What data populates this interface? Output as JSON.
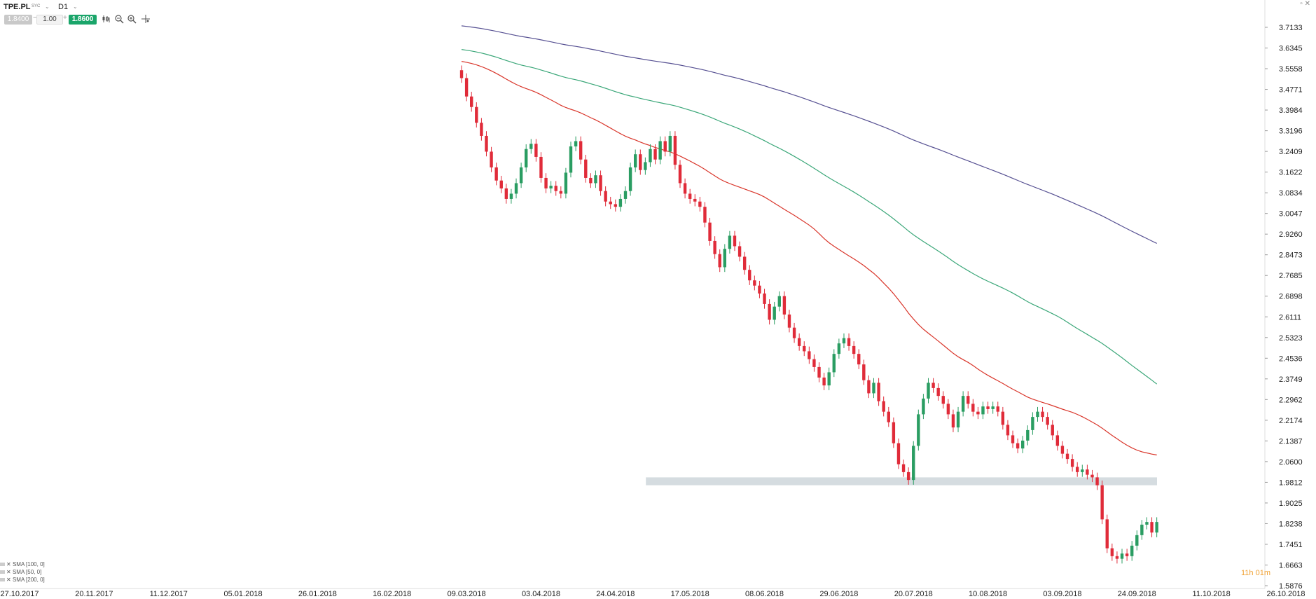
{
  "toolbar": {
    "symbol": "TPE.PL",
    "symbol_sub": "SYC",
    "timeframe": "D1",
    "sell_price": "1.8400",
    "lot_size": "1.00",
    "buy_price": "1.8600",
    "lot_minus": "−",
    "lot_plus": "+"
  },
  "window_controls": "▫ ✕",
  "countdown": {
    "hours": "11",
    "h": "h",
    "minutes": "01",
    "m": "m"
  },
  "legend": [
    {
      "label": "SMA [100, 0]",
      "color": "#3ba779"
    },
    {
      "label": "SMA [50, 0]",
      "color": "#d9362b"
    },
    {
      "label": "SMA [200, 0]",
      "color": "#565092"
    }
  ],
  "colors": {
    "up": "#2a9d62",
    "down": "#e02b39",
    "zone": "#d5dce0",
    "sma50": "#d9362b",
    "sma100": "#3ba779",
    "sma200": "#565092"
  },
  "chart_data": {
    "type": "candlestick",
    "y_ticks": [
      "3.7133",
      "3.6345",
      "3.5558",
      "3.4771",
      "3.3984",
      "3.3196",
      "3.2409",
      "3.1622",
      "3.0834",
      "3.0047",
      "2.9260",
      "2.8473",
      "2.7685",
      "2.6898",
      "2.6111",
      "2.5323",
      "2.4536",
      "2.3749",
      "2.2962",
      "2.2174",
      "2.1387",
      "2.0600",
      "1.9812",
      "1.9025",
      "1.8238",
      "1.7451",
      "1.6663",
      "1.5876"
    ],
    "ylim": [
      1.5876,
      3.7133
    ],
    "x_ticks": [
      "27.10.2017",
      "20.11.2017",
      "11.12.2017",
      "05.01.2018",
      "26.01.2018",
      "16.02.2018",
      "09.03.2018",
      "03.04.2018",
      "24.04.2018",
      "17.05.2018",
      "08.06.2018",
      "29.06.2018",
      "20.07.2018",
      "10.08.2018",
      "03.09.2018",
      "24.09.2018",
      "11.10.2018",
      "26.10.2018"
    ],
    "support_zone": {
      "low": 1.97,
      "high": 2.0,
      "from_tick": "17.05.2018"
    },
    "closes": [
      3.52,
      3.45,
      3.41,
      3.35,
      3.3,
      3.24,
      3.18,
      3.13,
      3.1,
      3.06,
      3.08,
      3.12,
      3.18,
      3.25,
      3.27,
      3.22,
      3.14,
      3.1,
      3.11,
      3.09,
      3.08,
      3.16,
      3.26,
      3.28,
      3.21,
      3.14,
      3.12,
      3.15,
      3.09,
      3.05,
      3.04,
      3.03,
      3.06,
      3.09,
      3.18,
      3.23,
      3.17,
      3.2,
      3.25,
      3.21,
      3.28,
      3.24,
      3.3,
      3.19,
      3.12,
      3.08,
      3.06,
      3.05,
      3.03,
      2.97,
      2.9,
      2.85,
      2.8,
      2.87,
      2.92,
      2.88,
      2.84,
      2.79,
      2.75,
      2.73,
      2.7,
      2.66,
      2.6,
      2.65,
      2.69,
      2.62,
      2.57,
      2.53,
      2.5,
      2.48,
      2.45,
      2.42,
      2.38,
      2.35,
      2.4,
      2.47,
      2.51,
      2.53,
      2.5,
      2.47,
      2.43,
      2.37,
      2.32,
      2.36,
      2.29,
      2.25,
      2.21,
      2.13,
      2.05,
      2.02,
      1.99,
      2.12,
      2.24,
      2.3,
      2.36,
      2.34,
      2.31,
      2.28,
      2.24,
      2.19,
      2.25,
      2.31,
      2.28,
      2.25,
      2.24,
      2.27,
      2.26,
      2.27,
      2.25,
      2.2,
      2.16,
      2.13,
      2.11,
      2.14,
      2.18,
      2.23,
      2.25,
      2.23,
      2.2,
      2.16,
      2.12,
      2.09,
      2.07,
      2.04,
      2.02,
      2.03,
      2.01,
      2.0,
      1.97,
      1.84,
      1.73,
      1.7,
      1.69,
      1.71,
      1.7,
      1.74,
      1.78,
      1.82,
      1.83,
      1.79,
      1.83
    ]
  }
}
